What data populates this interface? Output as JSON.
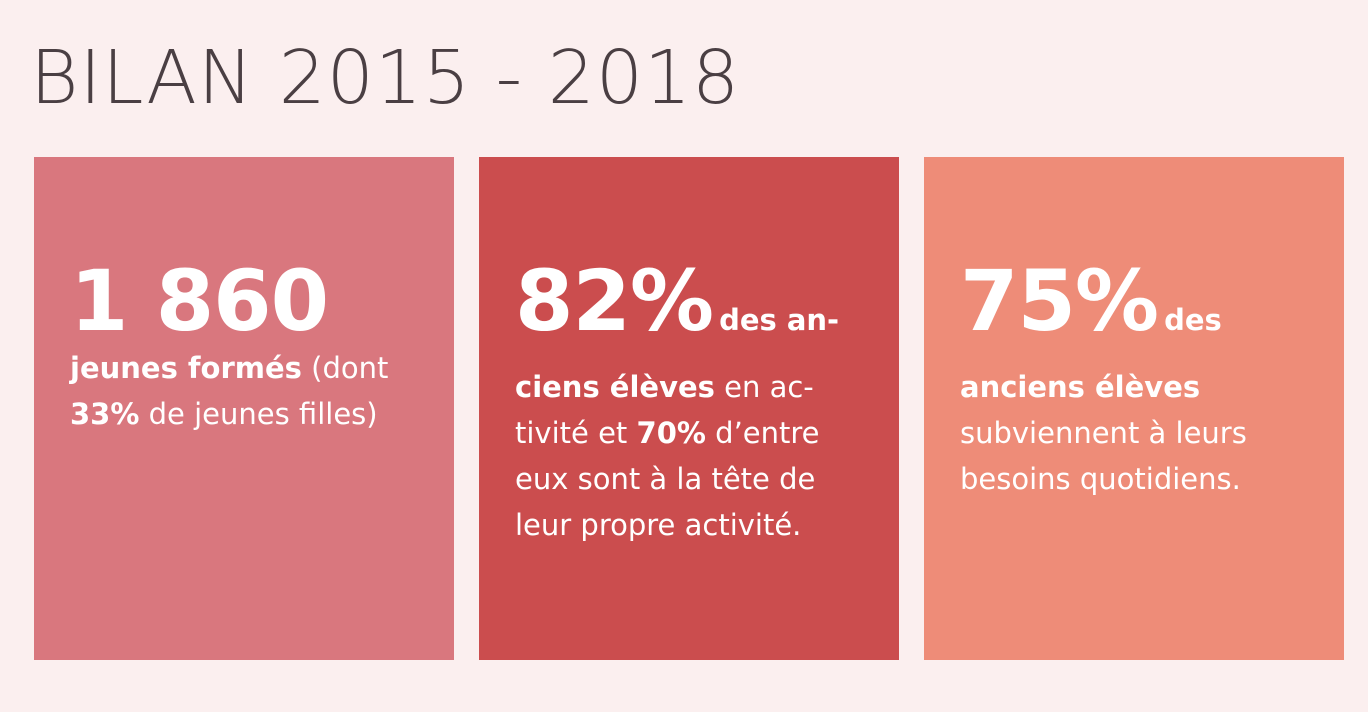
{
  "title": "BILAN 2015 - 2018",
  "colors": {
    "background": "#fbefef",
    "title": "#4a3f43",
    "card1": "#d9777e",
    "card2": "#cb4d4e",
    "card3": "#ee8c78",
    "text": "#ffffff"
  },
  "card1": {
    "big": "1 860",
    "line1_bold": "jeunes formés",
    "line1_rest": " (dont",
    "line2_bold": "33%",
    "line2_rest": " de jeunes filles)"
  },
  "card2": {
    "big": "82%",
    "after_big": "des an-",
    "line1_bold": "ciens élèves",
    "line1_rest": " en ac-",
    "line2_start": "tivité et ",
    "line2_bold": "70%",
    "line2_rest": " d’entre",
    "line3": "eux sont à la tête de",
    "line4": "leur propre activité."
  },
  "card3": {
    "big": "75%",
    "after_big": "des",
    "line1_bold": "anciens élèves",
    "line2": "subviennent à leurs",
    "line3": "besoins quotidiens."
  }
}
